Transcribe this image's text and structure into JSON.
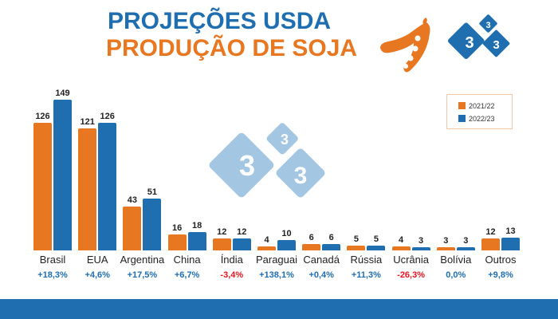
{
  "header": {
    "title_line1": "PROJEÇÕES USDA",
    "title_line2": "PRODUÇÃO DE SOJA",
    "icons": [
      "soybean-pod-icon",
      "333-logo-icon"
    ]
  },
  "colors": {
    "series_2021_22": "#e87722",
    "series_2022_23": "#1f6eb0",
    "positive_change": "#1f6eb0",
    "negative_change": "#e8141e",
    "footer": "#1f6eb0"
  },
  "legend": {
    "items": [
      {
        "label": "2021/22",
        "color": "#e87722"
      },
      {
        "label": "2022/23",
        "color": "#1f6eb0"
      }
    ]
  },
  "chart_data": {
    "type": "bar",
    "title": "PROJEÇÕES USDA - PRODUÇÃO DE SOJA",
    "xlabel": "",
    "ylabel": "",
    "categories": [
      "Brasil",
      "EUA",
      "Argentina",
      "China",
      "Índia",
      "Paraguai",
      "Canadá",
      "Rússia",
      "Ucrânia",
      "Bolívia",
      "Outros"
    ],
    "series": [
      {
        "name": "2021/22",
        "color": "#e87722",
        "values": [
          126,
          121,
          43,
          16,
          12,
          4,
          6,
          5,
          4,
          3,
          12
        ]
      },
      {
        "name": "2022/23",
        "color": "#1f6eb0",
        "values": [
          149,
          126,
          51,
          18,
          12,
          10,
          6,
          5,
          3,
          3,
          13
        ]
      }
    ],
    "annotations": [
      "+18,3%",
      "+4,6%",
      "+17,5%",
      "+6,7%",
      "-3,4%",
      "+138,1%",
      "+0,4%",
      "+11,3%",
      "-26,3%",
      "0,0%",
      "+9,8%"
    ],
    "grid": false,
    "legend_position": "top-right",
    "data_labels": true
  },
  "labels": {
    "categories": [
      "Brasil",
      "EUA",
      "Argentina",
      "China",
      "Índia",
      "Paraguai",
      "Canadá",
      "Rússia",
      "Ucrânia",
      "Bolívia",
      "Outros"
    ],
    "v1": [
      "126",
      "121",
      "43",
      "16",
      "12",
      "4",
      "6",
      "5",
      "4",
      "3",
      "12"
    ],
    "v2": [
      "149",
      "126",
      "51",
      "18",
      "12",
      "10",
      "6",
      "5",
      "3",
      "3",
      "13"
    ],
    "changes": [
      "+18,3%",
      "+4,6%",
      "+17,5%",
      "+6,7%",
      "-3,4%",
      "+138,1%",
      "+0,4%",
      "+11,3%",
      "-26,3%",
      "0,0%",
      "+9,8%"
    ]
  },
  "watermark": {
    "text": "3 3 3"
  }
}
